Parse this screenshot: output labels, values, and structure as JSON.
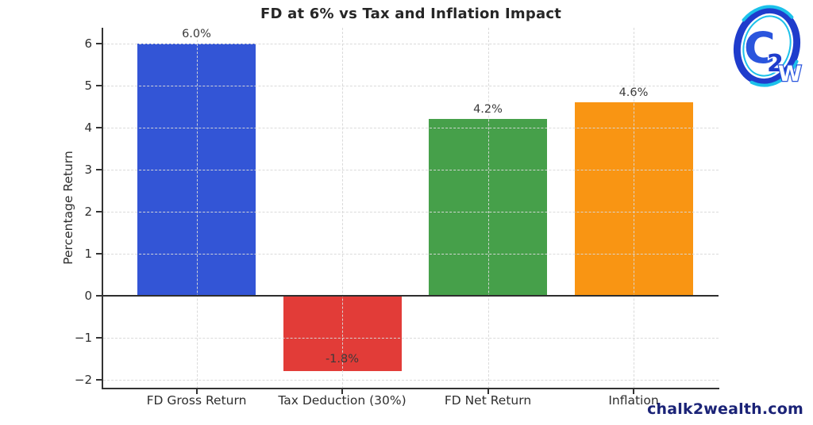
{
  "chart_data": {
    "type": "bar",
    "title": "FD at 6% vs Tax and Inflation Impact",
    "categories": [
      "FD Gross Return",
      "Tax Deduction (30%)",
      "FD Net Return",
      "Inflation"
    ],
    "values": [
      6.0,
      -1.8,
      4.2,
      4.6
    ],
    "value_labels": [
      "6.0%",
      "-1.8%",
      "4.2%",
      "4.6%"
    ],
    "bar_colors": [
      "#3355d6",
      "#e23c38",
      "#46a04a",
      "#f99513"
    ],
    "ylabel": "Percentage Return",
    "xlabel": "",
    "ylim": [
      -2.2,
      6.4
    ],
    "yticks": [
      6,
      5,
      4,
      3,
      2,
      1,
      0,
      -1,
      -2
    ],
    "ytick_labels": [
      "6",
      "5",
      "4",
      "3",
      "2",
      "1",
      "0",
      "−1",
      "−2"
    ],
    "grid": true,
    "grid_style": "dashed",
    "legend": "none"
  },
  "branding": {
    "watermark_text": "chalk2wealth.com",
    "watermark_color": "#1b2377",
    "logo_letters": {
      "c": "C",
      "two": "2",
      "w": "W"
    },
    "logo_colors": {
      "dark_blue": "#1f3ccc",
      "cyan": "#1cc1ea",
      "letter_blue": "#2a55dd",
      "white": "#ffffff"
    }
  }
}
